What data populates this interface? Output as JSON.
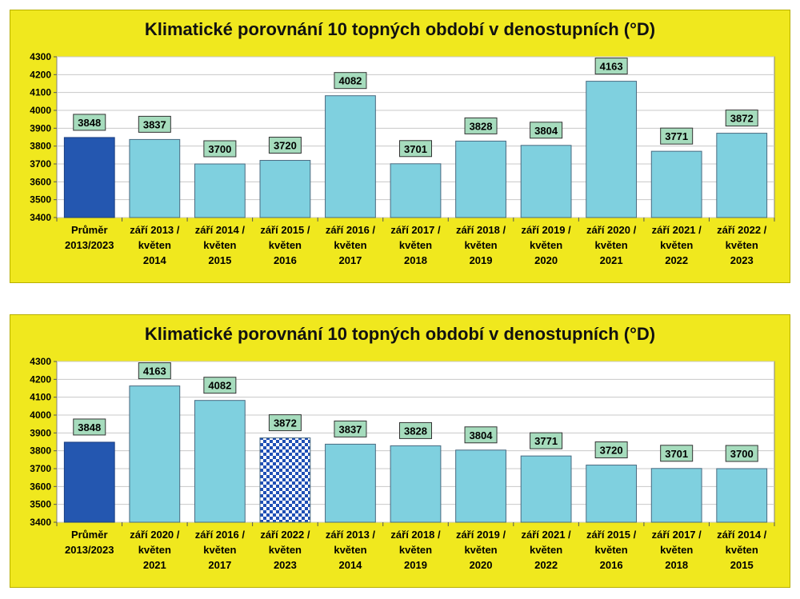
{
  "colors": {
    "background": "#f0e81e",
    "plot_area": "#ffffff",
    "average_bar": "#2457b0",
    "season_bar": "#7fd0df",
    "highlight_pattern_primary": "#1f4fb5",
    "data_label_box": "#a6dcbd",
    "gridline": "#c8c8c8"
  },
  "chart_data": [
    {
      "type": "bar",
      "title": "Klimatické porovnání 10 topných období v denostupních (°D)",
      "xlabel": "",
      "ylabel": "",
      "ylim": [
        3400,
        4300
      ],
      "yticks": [
        3400,
        3500,
        3600,
        3700,
        3800,
        3900,
        4000,
        4100,
        4200,
        4300
      ],
      "grid": true,
      "legend": "none",
      "categories": [
        [
          "Průměr",
          "2013/2023"
        ],
        [
          "září 2013 /",
          "květen",
          "2014"
        ],
        [
          "září 2014 /",
          "květen",
          "2015"
        ],
        [
          "září 2015 /",
          "květen",
          "2016"
        ],
        [
          "září 2016 /",
          "květen",
          "2017"
        ],
        [
          "září 2017 /",
          "květen",
          "2018"
        ],
        [
          "září 2018 /",
          "květen",
          "2019"
        ],
        [
          "září 2019 /",
          "květen",
          "2020"
        ],
        [
          "září 2020 /",
          "květen",
          "2021"
        ],
        [
          "září 2021 /",
          "květen",
          "2022"
        ],
        [
          "září 2022 /",
          "květen",
          "2023"
        ]
      ],
      "values": [
        3848,
        3837,
        3700,
        3720,
        4082,
        3701,
        3828,
        3804,
        4163,
        3771,
        3872
      ],
      "bar_styles": [
        "average",
        "season",
        "season",
        "season",
        "season",
        "season",
        "season",
        "season",
        "season",
        "season",
        "season"
      ]
    },
    {
      "type": "bar",
      "title": "Klimatické porovnání 10 topných období v denostupních (°D)",
      "xlabel": "",
      "ylabel": "",
      "ylim": [
        3400,
        4300
      ],
      "yticks": [
        3400,
        3500,
        3600,
        3700,
        3800,
        3900,
        4000,
        4100,
        4200,
        4300
      ],
      "grid": true,
      "legend": "none",
      "categories": [
        [
          "Průměr",
          "2013/2023"
        ],
        [
          "září 2020 /",
          "květen",
          "2021"
        ],
        [
          "září 2016 /",
          "květen",
          "2017"
        ],
        [
          "září 2022 /",
          "květen",
          "2023"
        ],
        [
          "září 2013 /",
          "květen",
          "2014"
        ],
        [
          "září 2018 /",
          "květen",
          "2019"
        ],
        [
          "září 2019 /",
          "květen",
          "2020"
        ],
        [
          "září 2021 /",
          "květen",
          "2022"
        ],
        [
          "září 2015 /",
          "květen",
          "2016"
        ],
        [
          "září 2017 /",
          "květen",
          "2018"
        ],
        [
          "září 2014 /",
          "květen",
          "2015"
        ]
      ],
      "values": [
        3848,
        4163,
        4082,
        3872,
        3837,
        3828,
        3804,
        3771,
        3720,
        3701,
        3700
      ],
      "bar_styles": [
        "average",
        "season",
        "season",
        "checkered",
        "season",
        "season",
        "season",
        "season",
        "season",
        "season",
        "season"
      ]
    }
  ]
}
